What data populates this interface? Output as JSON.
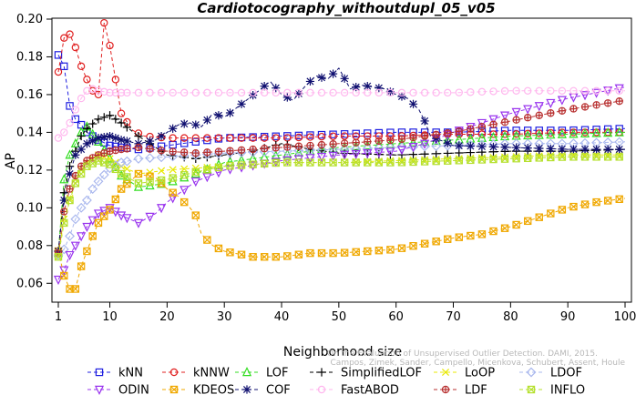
{
  "chart_data": {
    "type": "line",
    "title": "Cardiotocography_withoutdupl_05_v05",
    "xlabel": "Neighborhood size",
    "ylabel": "AP",
    "xlim": [
      1,
      100
    ],
    "ylim": [
      0.05,
      0.2
    ],
    "xticks": [
      1,
      10,
      20,
      30,
      40,
      50,
      60,
      70,
      80,
      90,
      100
    ],
    "yticks": [
      0.06,
      0.08,
      0.1,
      0.12,
      0.14,
      0.16,
      0.18,
      0.2
    ],
    "ytick_labels": [
      "0.06",
      "0.08",
      "0.10",
      "0.12",
      "0.14",
      "0.16",
      "0.18",
      "0.20"
    ],
    "legend_position": "bottom",
    "credit": [
      "Campos, Zimek, Sander, Campello, Micenkova, Schubert, Assent, Houle",
      "On the Evaluation of Unsupervised Outlier Detection. DAMI, 2015."
    ],
    "series": [
      {
        "name": "kNN",
        "color": "#1f1fe0",
        "marker": "square",
        "x": [
          1,
          2,
          3,
          4,
          5,
          6,
          8,
          10,
          12,
          15,
          20,
          25,
          30,
          40,
          50,
          60,
          70,
          80,
          90,
          100
        ],
        "y": [
          0.181,
          0.175,
          0.154,
          0.147,
          0.144,
          0.14,
          0.136,
          0.133,
          0.132,
          0.131,
          0.133,
          0.135,
          0.137,
          0.138,
          0.139,
          0.14,
          0.14,
          0.141,
          0.141,
          0.142
        ]
      },
      {
        "name": "kNNW",
        "color": "#e02020",
        "marker": "circle",
        "x": [
          1,
          2,
          3,
          4,
          5,
          6,
          7,
          8,
          9,
          10,
          11,
          12,
          14,
          16,
          20,
          25,
          30,
          40,
          50,
          60,
          70,
          80,
          90,
          100
        ],
        "y": [
          0.172,
          0.19,
          0.192,
          0.185,
          0.175,
          0.168,
          0.162,
          0.16,
          0.198,
          0.186,
          0.168,
          0.15,
          0.141,
          0.138,
          0.137,
          0.137,
          0.137,
          0.137,
          0.138,
          0.138,
          0.139,
          0.139,
          0.14,
          0.14
        ]
      },
      {
        "name": "LOF",
        "color": "#33dd22",
        "marker": "triangle",
        "x": [
          1,
          2,
          3,
          4,
          5,
          6,
          8,
          10,
          12,
          15,
          20,
          25,
          30,
          40,
          50,
          60,
          70,
          80,
          90,
          100
        ],
        "y": [
          0.076,
          0.115,
          0.128,
          0.134,
          0.14,
          0.143,
          0.135,
          0.126,
          0.117,
          0.111,
          0.113,
          0.118,
          0.124,
          0.128,
          0.132,
          0.134,
          0.136,
          0.138,
          0.139,
          0.14
        ]
      },
      {
        "name": "SimplifiedLOF",
        "color": "#000000",
        "marker": "plus",
        "x": [
          1,
          2,
          3,
          4,
          5,
          6,
          8,
          10,
          12,
          15,
          20,
          25,
          30,
          35,
          40,
          45,
          50,
          60,
          70,
          80,
          90,
          100
        ],
        "y": [
          0.077,
          0.108,
          0.122,
          0.13,
          0.138,
          0.142,
          0.147,
          0.149,
          0.145,
          0.138,
          0.128,
          0.126,
          0.128,
          0.13,
          0.134,
          0.131,
          0.129,
          0.128,
          0.129,
          0.13,
          0.13,
          0.131
        ]
      },
      {
        "name": "LoOP",
        "color": "#e8e800",
        "marker": "x",
        "x": [
          1,
          2,
          3,
          4,
          5,
          6,
          8,
          10,
          12,
          15,
          20,
          25,
          30,
          40,
          50,
          60,
          70,
          80,
          90,
          100
        ],
        "y": [
          0.075,
          0.094,
          0.105,
          0.115,
          0.12,
          0.124,
          0.128,
          0.126,
          0.122,
          0.118,
          0.12,
          0.121,
          0.122,
          0.124,
          0.124,
          0.125,
          0.126,
          0.127,
          0.128,
          0.128
        ]
      },
      {
        "name": "LDOF",
        "color": "#aab8ee",
        "marker": "diamond",
        "x": [
          1,
          2,
          3,
          4,
          5,
          6,
          7,
          8,
          10,
          12,
          15,
          20,
          25,
          30,
          40,
          50,
          60,
          70,
          80,
          90,
          100
        ],
        "y": [
          0.075,
          0.078,
          0.085,
          0.094,
          0.1,
          0.104,
          0.11,
          0.114,
          0.121,
          0.124,
          0.126,
          0.127,
          0.128,
          0.129,
          0.13,
          0.131,
          0.132,
          0.133,
          0.134,
          0.134,
          0.135
        ]
      },
      {
        "name": "ODIN",
        "color": "#9933ee",
        "marker": "triangle-down",
        "x": [
          1,
          2,
          3,
          4,
          5,
          6,
          8,
          10,
          12,
          15,
          18,
          20,
          25,
          30,
          40,
          50,
          60,
          65,
          70,
          80,
          90,
          100
        ],
        "y": [
          0.062,
          0.067,
          0.075,
          0.08,
          0.085,
          0.09,
          0.097,
          0.1,
          0.096,
          0.092,
          0.097,
          0.103,
          0.114,
          0.12,
          0.125,
          0.128,
          0.13,
          0.134,
          0.14,
          0.15,
          0.158,
          0.164
        ]
      },
      {
        "name": "KDEOS",
        "color": "#f0a800",
        "marker": "square-x",
        "x": [
          1,
          2,
          3,
          4,
          5,
          6,
          7,
          8,
          10,
          12,
          15,
          18,
          20,
          22,
          24,
          25,
          26,
          28,
          30,
          35,
          40,
          45,
          50,
          55,
          60,
          65,
          70,
          75,
          80,
          85,
          90,
          95,
          100
        ],
        "y": [
          0.077,
          0.064,
          0.057,
          0.057,
          0.069,
          0.077,
          0.085,
          0.092,
          0.099,
          0.11,
          0.118,
          0.116,
          0.11,
          0.106,
          0.1,
          0.096,
          0.086,
          0.08,
          0.077,
          0.074,
          0.074,
          0.076,
          0.076,
          0.077,
          0.078,
          0.081,
          0.084,
          0.086,
          0.09,
          0.095,
          0.1,
          0.103,
          0.105
        ]
      },
      {
        "name": "COF",
        "color": "#101070",
        "marker": "star",
        "x": [
          1,
          2,
          3,
          4,
          5,
          6,
          8,
          10,
          12,
          15,
          18,
          20,
          22,
          24,
          26,
          28,
          30,
          33,
          36,
          38,
          40,
          42,
          44,
          46,
          48,
          50,
          52,
          54,
          56,
          58,
          60,
          62,
          64,
          65,
          66,
          70,
          80,
          90,
          100
        ],
        "y": [
          0.077,
          0.104,
          0.118,
          0.128,
          0.131,
          0.134,
          0.137,
          0.138,
          0.136,
          0.134,
          0.136,
          0.14,
          0.144,
          0.145,
          0.143,
          0.15,
          0.148,
          0.155,
          0.162,
          0.167,
          0.16,
          0.157,
          0.164,
          0.17,
          0.168,
          0.174,
          0.163,
          0.165,
          0.164,
          0.163,
          0.16,
          0.158,
          0.152,
          0.146,
          0.138,
          0.133,
          0.132,
          0.131,
          0.131
        ]
      },
      {
        "name": "FastABOD",
        "color": "#ffb6ee",
        "marker": "circle",
        "x": [
          1,
          2,
          3,
          4,
          5,
          6,
          7,
          8,
          10,
          12,
          15,
          20,
          30,
          40,
          50,
          60,
          70,
          80,
          90,
          100
        ],
        "y": [
          0.137,
          0.14,
          0.145,
          0.152,
          0.158,
          0.162,
          0.163,
          0.162,
          0.161,
          0.161,
          0.161,
          0.161,
          0.161,
          0.161,
          0.161,
          0.161,
          0.161,
          0.162,
          0.162,
          0.162
        ]
      },
      {
        "name": "LDF",
        "color": "#b83030",
        "marker": "circle-plus",
        "x": [
          1,
          2,
          3,
          4,
          5,
          6,
          8,
          10,
          12,
          15,
          20,
          25,
          30,
          40,
          50,
          60,
          70,
          80,
          90,
          100
        ],
        "y": [
          0.076,
          0.098,
          0.11,
          0.117,
          0.122,
          0.125,
          0.128,
          0.13,
          0.131,
          0.132,
          0.13,
          0.129,
          0.13,
          0.132,
          0.134,
          0.136,
          0.14,
          0.146,
          0.152,
          0.157
        ]
      },
      {
        "name": "INFLO",
        "color": "#b5e02e",
        "marker": "hourglass",
        "x": [
          1,
          2,
          3,
          4,
          5,
          6,
          8,
          10,
          12,
          15,
          20,
          25,
          30,
          40,
          50,
          60,
          70,
          80,
          90,
          100
        ],
        "y": [
          0.074,
          0.092,
          0.104,
          0.113,
          0.118,
          0.122,
          0.125,
          0.123,
          0.118,
          0.113,
          0.115,
          0.119,
          0.122,
          0.124,
          0.124,
          0.124,
          0.125,
          0.126,
          0.127,
          0.127
        ]
      }
    ]
  },
  "legend_rows": [
    [
      "kNN",
      "kNNW",
      "LOF",
      "SimplifiedLOF",
      "LoOP",
      "LDOF"
    ],
    [
      "ODIN",
      "KDEOS",
      "COF",
      "FastABOD",
      "LDF",
      "INFLO"
    ]
  ]
}
